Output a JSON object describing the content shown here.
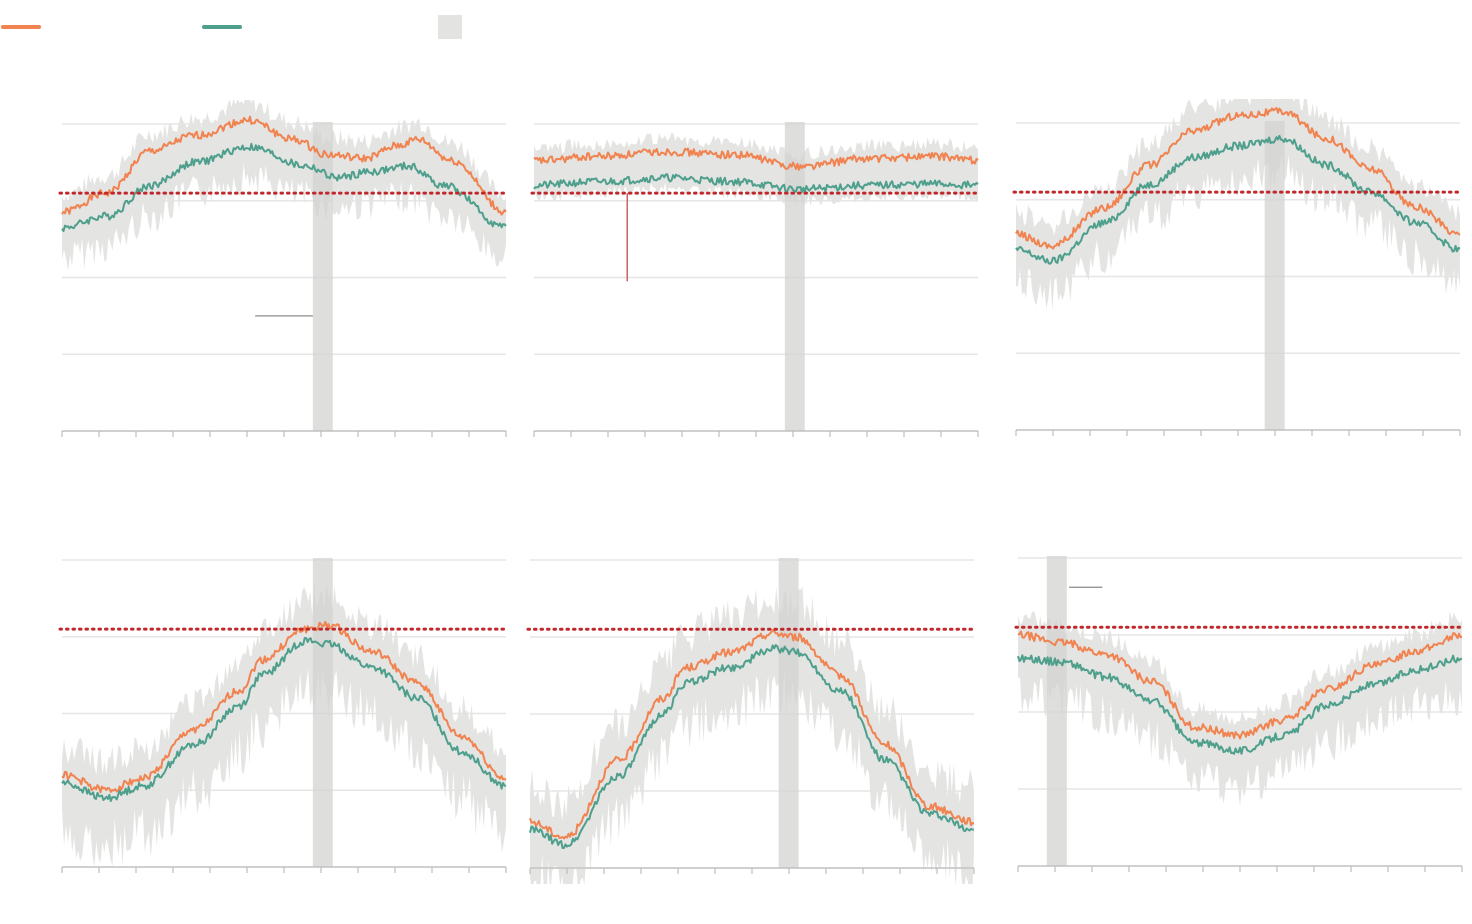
{
  "colors": {
    "series_a": "#f0834f",
    "series_b": "#4e9f8c",
    "band": "#e3e3e1",
    "highlight": "#d3d3d1",
    "threshold": "#c0282b",
    "grid": "#e6e6e6",
    "axis": "#bdbdbd",
    "callout_gray": "#8a8a8a",
    "callout_red": "#c96363"
  },
  "legend": {
    "items": [
      {
        "name": "",
        "color_key": "series_a",
        "symbol": "line"
      },
      {
        "name": "",
        "color_key": "series_b",
        "symbol": "line"
      },
      {
        "name": "",
        "color_key": "band",
        "symbol": "box"
      }
    ]
  },
  "chart_data": [
    {
      "type": "line",
      "ylim": [
        -4,
        0
      ],
      "threshold": -0.9,
      "grid": [
        -4,
        -3,
        -2,
        -1,
        0
      ],
      "highlight_x": [
        0.565,
        0.61
      ],
      "a": [
        [
          0,
          -1.15
        ],
        [
          0.1,
          -0.9
        ],
        [
          0.2,
          -0.35
        ],
        [
          0.3,
          -0.15
        ],
        [
          0.42,
          0.05
        ],
        [
          0.52,
          -0.2
        ],
        [
          0.6,
          -0.4
        ],
        [
          0.68,
          -0.45
        ],
        [
          0.76,
          -0.28
        ],
        [
          0.8,
          -0.2
        ],
        [
          0.88,
          -0.48
        ],
        [
          1,
          -1.15
        ]
      ],
      "b": [
        [
          0,
          -1.35
        ],
        [
          0.1,
          -1.2
        ],
        [
          0.2,
          -0.8
        ],
        [
          0.3,
          -0.5
        ],
        [
          0.42,
          -0.3
        ],
        [
          0.55,
          -0.55
        ],
        [
          0.62,
          -0.7
        ],
        [
          0.7,
          -0.62
        ],
        [
          0.78,
          -0.55
        ],
        [
          0.86,
          -0.8
        ],
        [
          1,
          -1.35
        ]
      ],
      "band_up": 0.25,
      "band_dn": 0.5,
      "callout": {
        "kind": "gray",
        "x0": 0.435,
        "x1": 0.565,
        "y": -2.5
      }
    },
    {
      "type": "line",
      "ylim": [
        -4,
        0
      ],
      "threshold": -0.9,
      "grid": [
        -4,
        -3,
        -2,
        -1,
        0
      ],
      "highlight_x": [
        0.565,
        0.61
      ],
      "a": [
        [
          0,
          -0.48
        ],
        [
          0.15,
          -0.42
        ],
        [
          0.3,
          -0.36
        ],
        [
          0.45,
          -0.4
        ],
        [
          0.6,
          -0.55
        ],
        [
          0.75,
          -0.45
        ],
        [
          0.9,
          -0.42
        ],
        [
          1,
          -0.47
        ]
      ],
      "b": [
        [
          0,
          -0.8
        ],
        [
          0.15,
          -0.75
        ],
        [
          0.3,
          -0.7
        ],
        [
          0.45,
          -0.75
        ],
        [
          0.6,
          -0.85
        ],
        [
          0.75,
          -0.8
        ],
        [
          0.9,
          -0.78
        ],
        [
          1,
          -0.8
        ]
      ],
      "band_up": 0.18,
      "band_dn": 0.18,
      "callout": {
        "kind": "red",
        "x": 0.21,
        "y0": -0.9,
        "y1": -2.05
      }
    },
    {
      "type": "line",
      "ylim": [
        -4,
        0
      ],
      "threshold": -0.9,
      "grid": [
        -4,
        -3,
        -2,
        -1,
        0
      ],
      "highlight_x": [
        0.56,
        0.605
      ],
      "a": [
        [
          0,
          -1.45
        ],
        [
          0.08,
          -1.6
        ],
        [
          0.2,
          -1.1
        ],
        [
          0.3,
          -0.55
        ],
        [
          0.4,
          -0.1
        ],
        [
          0.5,
          0.1
        ],
        [
          0.6,
          0.15
        ],
        [
          0.7,
          -0.2
        ],
        [
          0.8,
          -0.6
        ],
        [
          0.9,
          -1.1
        ],
        [
          1,
          -1.45
        ]
      ],
      "b": [
        [
          0,
          -1.65
        ],
        [
          0.08,
          -1.8
        ],
        [
          0.2,
          -1.3
        ],
        [
          0.3,
          -0.8
        ],
        [
          0.4,
          -0.45
        ],
        [
          0.5,
          -0.3
        ],
        [
          0.6,
          -0.2
        ],
        [
          0.7,
          -0.55
        ],
        [
          0.8,
          -0.9
        ],
        [
          0.9,
          -1.3
        ],
        [
          1,
          -1.65
        ]
      ],
      "band_up": 0.3,
      "band_dn": 0.55
    },
    {
      "type": "line",
      "ylim": [
        -4,
        0
      ],
      "threshold": -0.9,
      "grid": [
        -4,
        -3,
        -2,
        -1,
        0
      ],
      "highlight_x": [
        0.565,
        0.61
      ],
      "a": [
        [
          0,
          -2.8
        ],
        [
          0.1,
          -3.0
        ],
        [
          0.18,
          -2.85
        ],
        [
          0.3,
          -2.2
        ],
        [
          0.4,
          -1.7
        ],
        [
          0.45,
          -1.3
        ],
        [
          0.55,
          -0.9
        ],
        [
          0.6,
          -0.85
        ],
        [
          0.7,
          -1.2
        ],
        [
          0.8,
          -1.6
        ],
        [
          0.9,
          -2.3
        ],
        [
          1,
          -2.85
        ]
      ],
      "b": [
        [
          0,
          -2.9
        ],
        [
          0.1,
          -3.1
        ],
        [
          0.18,
          -2.95
        ],
        [
          0.3,
          -2.4
        ],
        [
          0.4,
          -1.9
        ],
        [
          0.45,
          -1.5
        ],
        [
          0.55,
          -1.05
        ],
        [
          0.6,
          -1.1
        ],
        [
          0.7,
          -1.4
        ],
        [
          0.8,
          -1.8
        ],
        [
          0.9,
          -2.5
        ],
        [
          1,
          -2.95
        ]
      ],
      "band_up": 0.4,
      "band_dn": 0.8
    },
    {
      "type": "line",
      "ylim": [
        -4,
        0
      ],
      "threshold": -0.9,
      "grid": [
        -4,
        -3,
        -2,
        -1,
        0
      ],
      "highlight_x": [
        0.56,
        0.605
      ],
      "a": [
        [
          0,
          -3.4
        ],
        [
          0.08,
          -3.6
        ],
        [
          0.2,
          -2.6
        ],
        [
          0.3,
          -1.8
        ],
        [
          0.35,
          -1.4
        ],
        [
          0.45,
          -1.2
        ],
        [
          0.55,
          -0.95
        ],
        [
          0.6,
          -1.0
        ],
        [
          0.7,
          -1.5
        ],
        [
          0.8,
          -2.4
        ],
        [
          0.9,
          -3.2
        ],
        [
          1,
          -3.4
        ]
      ],
      "b": [
        [
          0,
          -3.5
        ],
        [
          0.08,
          -3.7
        ],
        [
          0.2,
          -2.8
        ],
        [
          0.3,
          -2.0
        ],
        [
          0.35,
          -1.6
        ],
        [
          0.45,
          -1.4
        ],
        [
          0.55,
          -1.15
        ],
        [
          0.6,
          -1.2
        ],
        [
          0.7,
          -1.7
        ],
        [
          0.8,
          -2.6
        ],
        [
          0.9,
          -3.3
        ],
        [
          1,
          -3.5
        ]
      ],
      "band_up": 0.5,
      "band_dn": 0.7
    },
    {
      "type": "line",
      "ylim": [
        -4,
        0
      ],
      "threshold": -0.9,
      "grid": [
        -4,
        -3,
        -2,
        -1,
        0
      ],
      "highlight_x": [
        0.065,
        0.11
      ],
      "a": [
        [
          0,
          -1.0
        ],
        [
          0.1,
          -1.1
        ],
        [
          0.2,
          -1.25
        ],
        [
          0.3,
          -1.6
        ],
        [
          0.4,
          -2.2
        ],
        [
          0.5,
          -2.3
        ],
        [
          0.6,
          -2.1
        ],
        [
          0.7,
          -1.7
        ],
        [
          0.8,
          -1.4
        ],
        [
          0.9,
          -1.2
        ],
        [
          1,
          -1.0
        ]
      ],
      "b": [
        [
          0,
          -1.3
        ],
        [
          0.1,
          -1.35
        ],
        [
          0.2,
          -1.55
        ],
        [
          0.3,
          -1.85
        ],
        [
          0.4,
          -2.4
        ],
        [
          0.5,
          -2.5
        ],
        [
          0.6,
          -2.3
        ],
        [
          0.7,
          -1.9
        ],
        [
          0.8,
          -1.65
        ],
        [
          0.9,
          -1.45
        ],
        [
          1,
          -1.3
        ]
      ],
      "band_up": 0.25,
      "band_dn": 0.6,
      "callout": {
        "kind": "gray",
        "x0": 0.115,
        "x1": 0.19,
        "y": -0.38
      }
    }
  ]
}
